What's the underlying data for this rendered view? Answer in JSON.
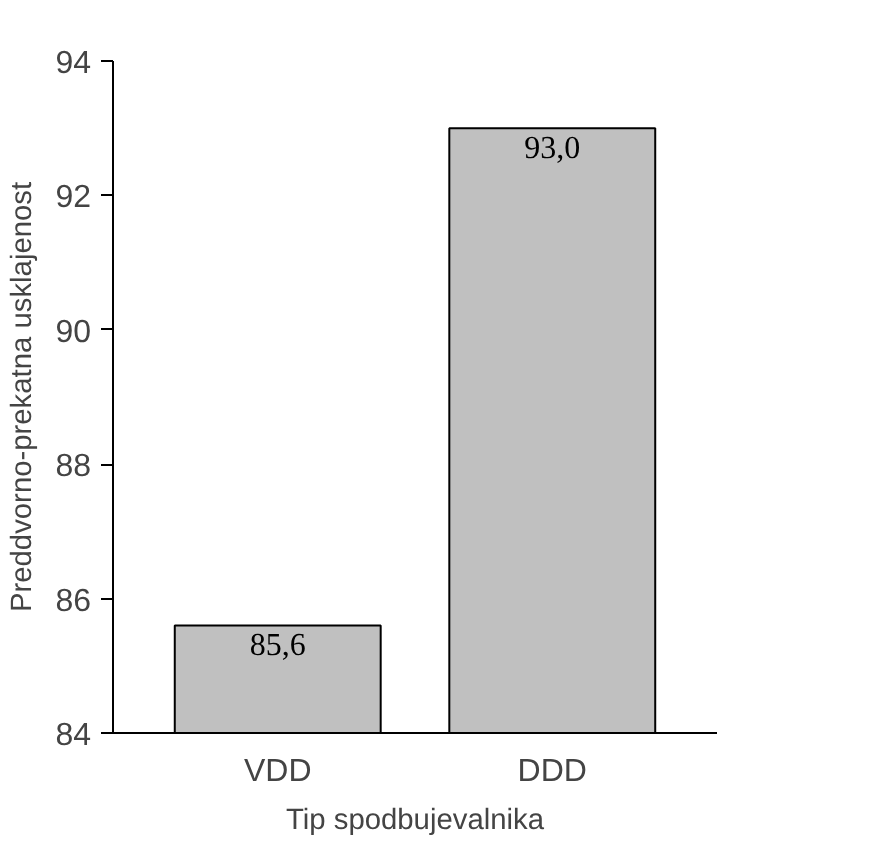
{
  "chart_data": {
    "type": "bar",
    "xlabel": "Tip spodbujevalnika",
    "ylabel": "Preddvorno-prekatna usklajenost",
    "categories": [
      "VDD",
      "DDD"
    ],
    "values": [
      85.6,
      93.0
    ],
    "value_labels": [
      "85,6",
      "93,0"
    ],
    "color": "#c0c0c0",
    "ylim": [
      84,
      94
    ],
    "yticks": [
      84,
      86,
      88,
      90,
      92,
      94
    ],
    "grid": false
  }
}
